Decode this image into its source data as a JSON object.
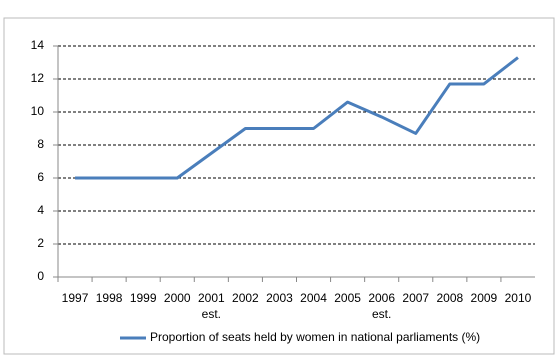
{
  "chart_data": {
    "type": "line",
    "categories": [
      "1997",
      "1998",
      "1999",
      "2000",
      "2001 est.",
      "2002",
      "2003",
      "2004",
      "2005",
      "2006 est.",
      "2007",
      "2008",
      "2009",
      "2010"
    ],
    "series": [
      {
        "name": "Proportion of seats held by women in national parliaments (%)",
        "color": "#4a7ebb",
        "values": [
          6,
          6,
          6,
          6,
          7.5,
          9,
          9,
          9,
          10.6,
          9.7,
          8.7,
          11.7,
          11.7,
          13.3
        ]
      }
    ],
    "ylim": [
      0,
      14
    ],
    "yticks": [
      0,
      2,
      4,
      6,
      8,
      10,
      12,
      14
    ],
    "grid": true,
    "legend": "bottom"
  }
}
